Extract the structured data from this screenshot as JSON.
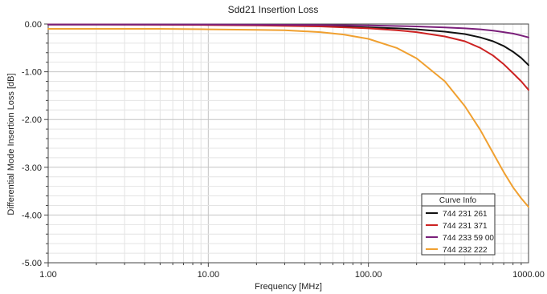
{
  "chart_data": {
    "type": "line",
    "title": "Sdd21 Insertion Loss",
    "xlabel": "Frequency [MHz]",
    "ylabel": "Differential Mode Insertion Loss [dB]",
    "xscale": "log",
    "xlim": [
      1,
      1000
    ],
    "ylim": [
      -5,
      0
    ],
    "x_ticks": [
      1,
      10,
      100,
      1000
    ],
    "x_tick_labels": [
      "1.00",
      "10.00",
      "100.00",
      "1000.00"
    ],
    "y_ticks": [
      0,
      -1,
      -2,
      -3,
      -4,
      -5
    ],
    "y_tick_labels": [
      "0.00",
      "-1.00",
      "-2.00",
      "-3.00",
      "-4.00",
      "-5.00"
    ],
    "grid": true,
    "legend": {
      "title": "Curve Info",
      "placement": "bottom-right"
    },
    "series": [
      {
        "name": "744 231 261",
        "color": "#111111",
        "x": [
          1,
          2,
          5,
          10,
          20,
          50,
          100,
          150,
          200,
          300,
          400,
          500,
          600,
          700,
          800,
          900,
          1000
        ],
        "values": [
          -0.01,
          -0.01,
          -0.01,
          -0.015,
          -0.02,
          -0.04,
          -0.07,
          -0.09,
          -0.11,
          -0.16,
          -0.21,
          -0.28,
          -0.36,
          -0.46,
          -0.58,
          -0.71,
          -0.86
        ]
      },
      {
        "name": "744 231 371",
        "color": "#cc2222",
        "x": [
          1,
          2,
          5,
          10,
          20,
          50,
          100,
          150,
          200,
          300,
          400,
          500,
          600,
          700,
          800,
          900,
          1000
        ],
        "values": [
          -0.01,
          -0.01,
          -0.015,
          -0.02,
          -0.03,
          -0.05,
          -0.09,
          -0.13,
          -0.17,
          -0.26,
          -0.36,
          -0.5,
          -0.66,
          -0.84,
          -1.03,
          -1.2,
          -1.38
        ]
      },
      {
        "name": "744 233 59 00",
        "color": "#7a1f7a",
        "x": [
          1,
          2,
          5,
          10,
          20,
          50,
          100,
          200,
          300,
          400,
          500,
          600,
          700,
          800,
          900,
          1000
        ],
        "values": [
          -0.01,
          -0.01,
          -0.01,
          -0.01,
          -0.015,
          -0.02,
          -0.03,
          -0.05,
          -0.07,
          -0.09,
          -0.11,
          -0.14,
          -0.17,
          -0.2,
          -0.24,
          -0.28
        ]
      },
      {
        "name": "744 232 222",
        "color": "#f0a030",
        "x": [
          1,
          2,
          5,
          10,
          20,
          30,
          50,
          70,
          100,
          150,
          200,
          300,
          400,
          500,
          600,
          700,
          800,
          900,
          1000
        ],
        "values": [
          -0.1,
          -0.1,
          -0.1,
          -0.11,
          -0.12,
          -0.13,
          -0.17,
          -0.22,
          -0.31,
          -0.5,
          -0.72,
          -1.2,
          -1.72,
          -2.22,
          -2.7,
          -3.1,
          -3.42,
          -3.65,
          -3.83
        ]
      }
    ]
  }
}
